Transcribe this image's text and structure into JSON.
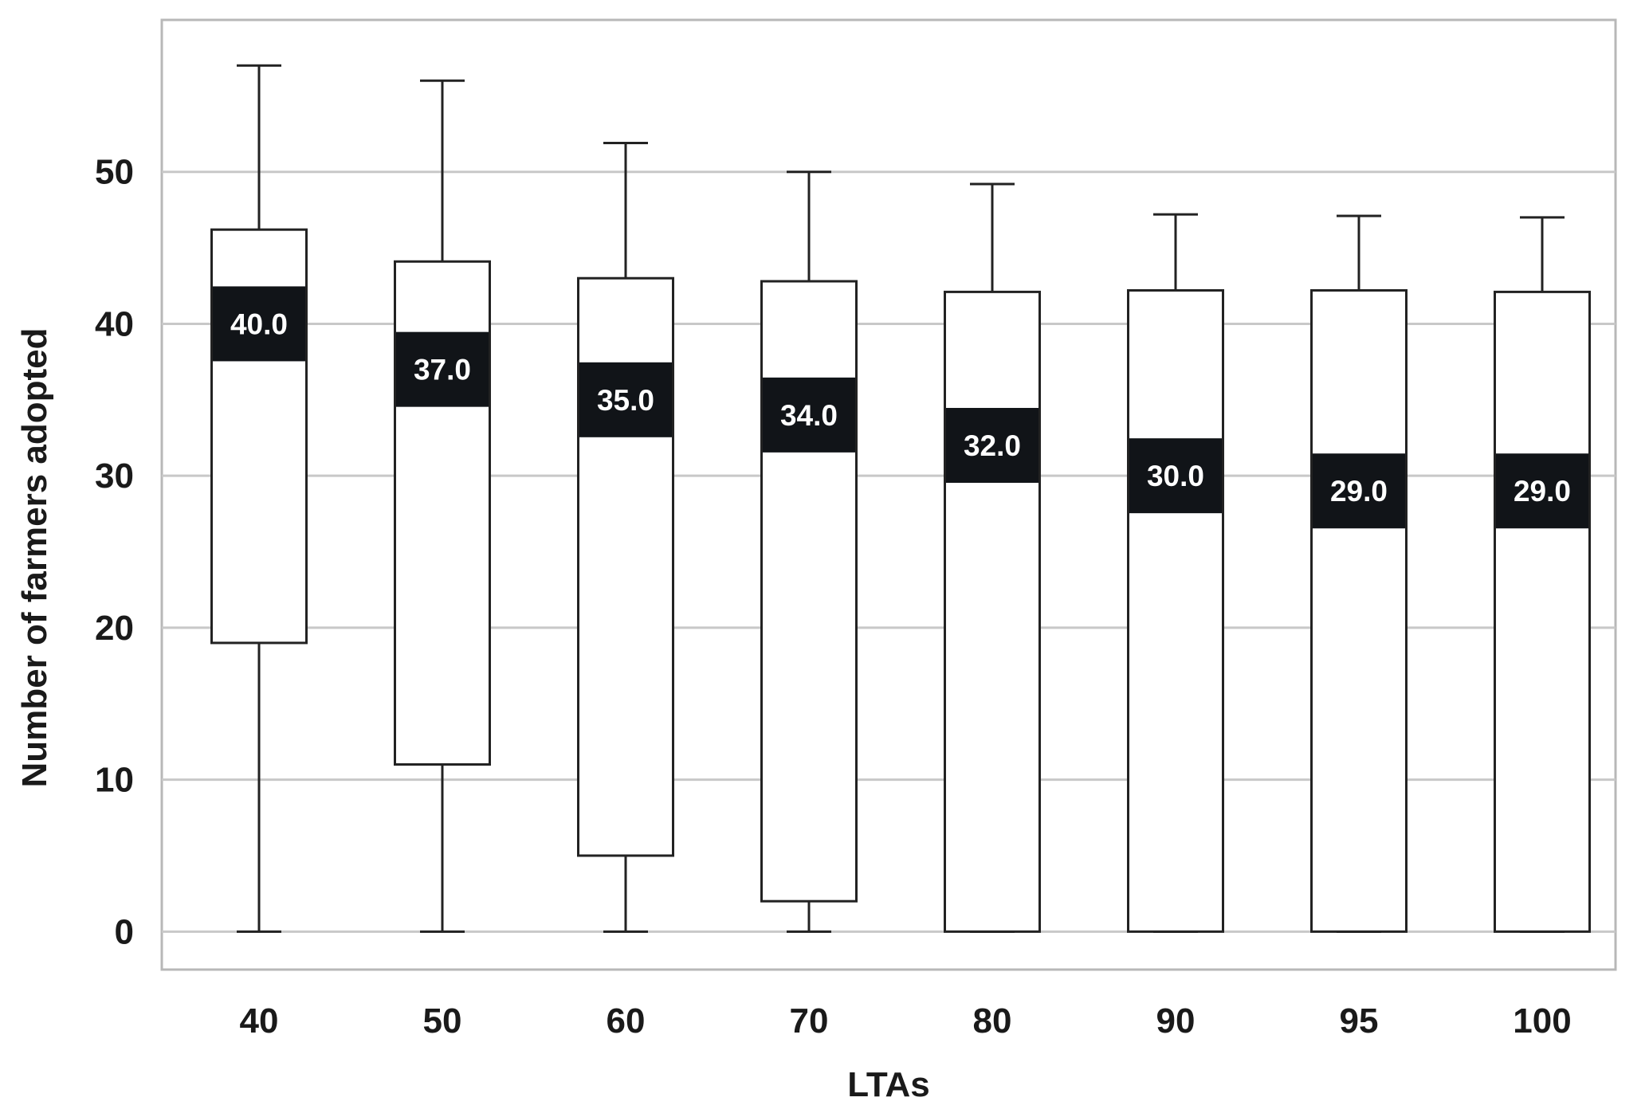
{
  "chart_data": {
    "type": "boxplot",
    "xlabel": "LTAs",
    "ylabel": "Number of farmers adopted",
    "ylim": [
      -2.5,
      60
    ],
    "yticks": [
      0,
      10,
      20,
      30,
      40,
      50
    ],
    "grid": "horizontal",
    "categories": [
      "40",
      "50",
      "60",
      "70",
      "80",
      "90",
      "95",
      "100"
    ],
    "boxes": [
      {
        "category": "40",
        "min": 0,
        "q1": 19,
        "median": 40,
        "q3": 46.2,
        "max": 57,
        "median_label": "40.0"
      },
      {
        "category": "50",
        "min": 0,
        "q1": 11,
        "median": 37,
        "q3": 44.1,
        "max": 56,
        "median_label": "37.0"
      },
      {
        "category": "60",
        "min": 0,
        "q1": 5,
        "median": 35,
        "q3": 43,
        "max": 51.9,
        "median_label": "35.0"
      },
      {
        "category": "70",
        "min": 0,
        "q1": 2,
        "median": 34,
        "q3": 42.8,
        "max": 50,
        "median_label": "34.0"
      },
      {
        "category": "80",
        "min": 0,
        "q1": 0,
        "median": 32,
        "q3": 42.1,
        "max": 49.2,
        "median_label": "32.0"
      },
      {
        "category": "90",
        "min": 0,
        "q1": 0,
        "median": 30,
        "q3": 42.2,
        "max": 47.2,
        "median_label": "30.0"
      },
      {
        "category": "95",
        "min": 0,
        "q1": 0,
        "median": 29,
        "q3": 42.2,
        "max": 47.1,
        "median_label": "29.0"
      },
      {
        "category": "100",
        "min": 0,
        "q1": 0,
        "median": 29,
        "q3": 42.1,
        "max": 47,
        "median_label": "29.0"
      }
    ],
    "colors": {
      "box_fill": "#ffffff",
      "box_stroke": "#222222",
      "median_band": "#111418",
      "median_text": "#ffffff",
      "grid": "#c8c8c8",
      "frame": "#b8b8b8"
    }
  }
}
